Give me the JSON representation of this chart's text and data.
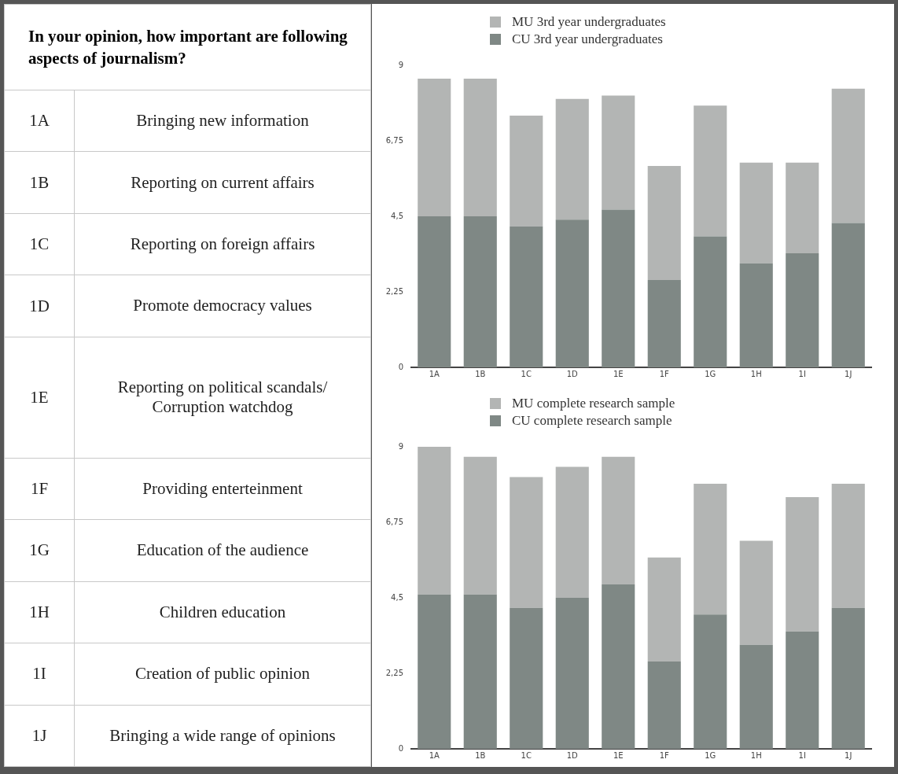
{
  "chart_data": [
    {
      "type": "other",
      "title": "In your opinion, how important are following aspects of journalism?",
      "categories": [
        "1A",
        "1B",
        "1C",
        "1D",
        "1E",
        "1F",
        "1G",
        "1H",
        "1I",
        "1J"
      ],
      "annotations": [
        "Bringing new information",
        "Reporting on current affairs",
        "Reporting on foreign affairs",
        "Promote democracy values",
        "Reporting on political scandals/\nCorruption watchdog",
        "Providing enterteinment",
        "Education of the audience",
        "Children education",
        "Creation of public opinion",
        "Bringing a wide range of opinions"
      ]
    },
    {
      "type": "bar",
      "stacked": true,
      "categories": [
        "1A",
        "1B",
        "1C",
        "1D",
        "1E",
        "1F",
        "1G",
        "1H",
        "1I",
        "1J"
      ],
      "ylim": [
        0,
        9
      ],
      "yticks": [
        {
          "value": 0,
          "label": "0"
        },
        {
          "value": 2.25,
          "label": "2,25"
        },
        {
          "value": 4.5,
          "label": "4,5"
        },
        {
          "value": 6.75,
          "label": "6,75"
        },
        {
          "value": 9,
          "label": "9"
        }
      ],
      "grid": false,
      "legend": "top",
      "series": [
        {
          "name": "CU 3rd year undergraduates",
          "color": "#7f8885",
          "values": [
            4.5,
            4.5,
            4.2,
            4.4,
            4.7,
            2.6,
            3.9,
            3.1,
            3.4,
            4.3
          ]
        },
        {
          "name": "MU 3rd year undergraduates",
          "color": "#b3b5b4",
          "values": [
            4.1,
            4.1,
            3.3,
            3.6,
            3.4,
            3.4,
            3.9,
            3.0,
            2.7,
            4.0
          ]
        }
      ]
    },
    {
      "type": "bar",
      "stacked": true,
      "categories": [
        "1A",
        "1B",
        "1C",
        "1D",
        "1E",
        "1F",
        "1G",
        "1H",
        "1I",
        "1J"
      ],
      "ylim": [
        0,
        9
      ],
      "yticks": [
        {
          "value": 0,
          "label": "0"
        },
        {
          "value": 2.25,
          "label": "2,25"
        },
        {
          "value": 4.5,
          "label": "4,5"
        },
        {
          "value": 6.75,
          "label": "6,75"
        },
        {
          "value": 9,
          "label": "9"
        }
      ],
      "grid": false,
      "legend": "top",
      "series": [
        {
          "name": "CU complete research sample",
          "color": "#7f8885",
          "values": [
            4.6,
            4.6,
            4.2,
            4.5,
            4.9,
            2.6,
            4.0,
            3.1,
            3.5,
            4.2
          ]
        },
        {
          "name": "MU complete research sample",
          "color": "#b3b5b4",
          "values": [
            4.4,
            4.1,
            3.9,
            3.9,
            3.8,
            3.1,
            3.9,
            3.1,
            4.0,
            3.7
          ]
        }
      ]
    }
  ]
}
